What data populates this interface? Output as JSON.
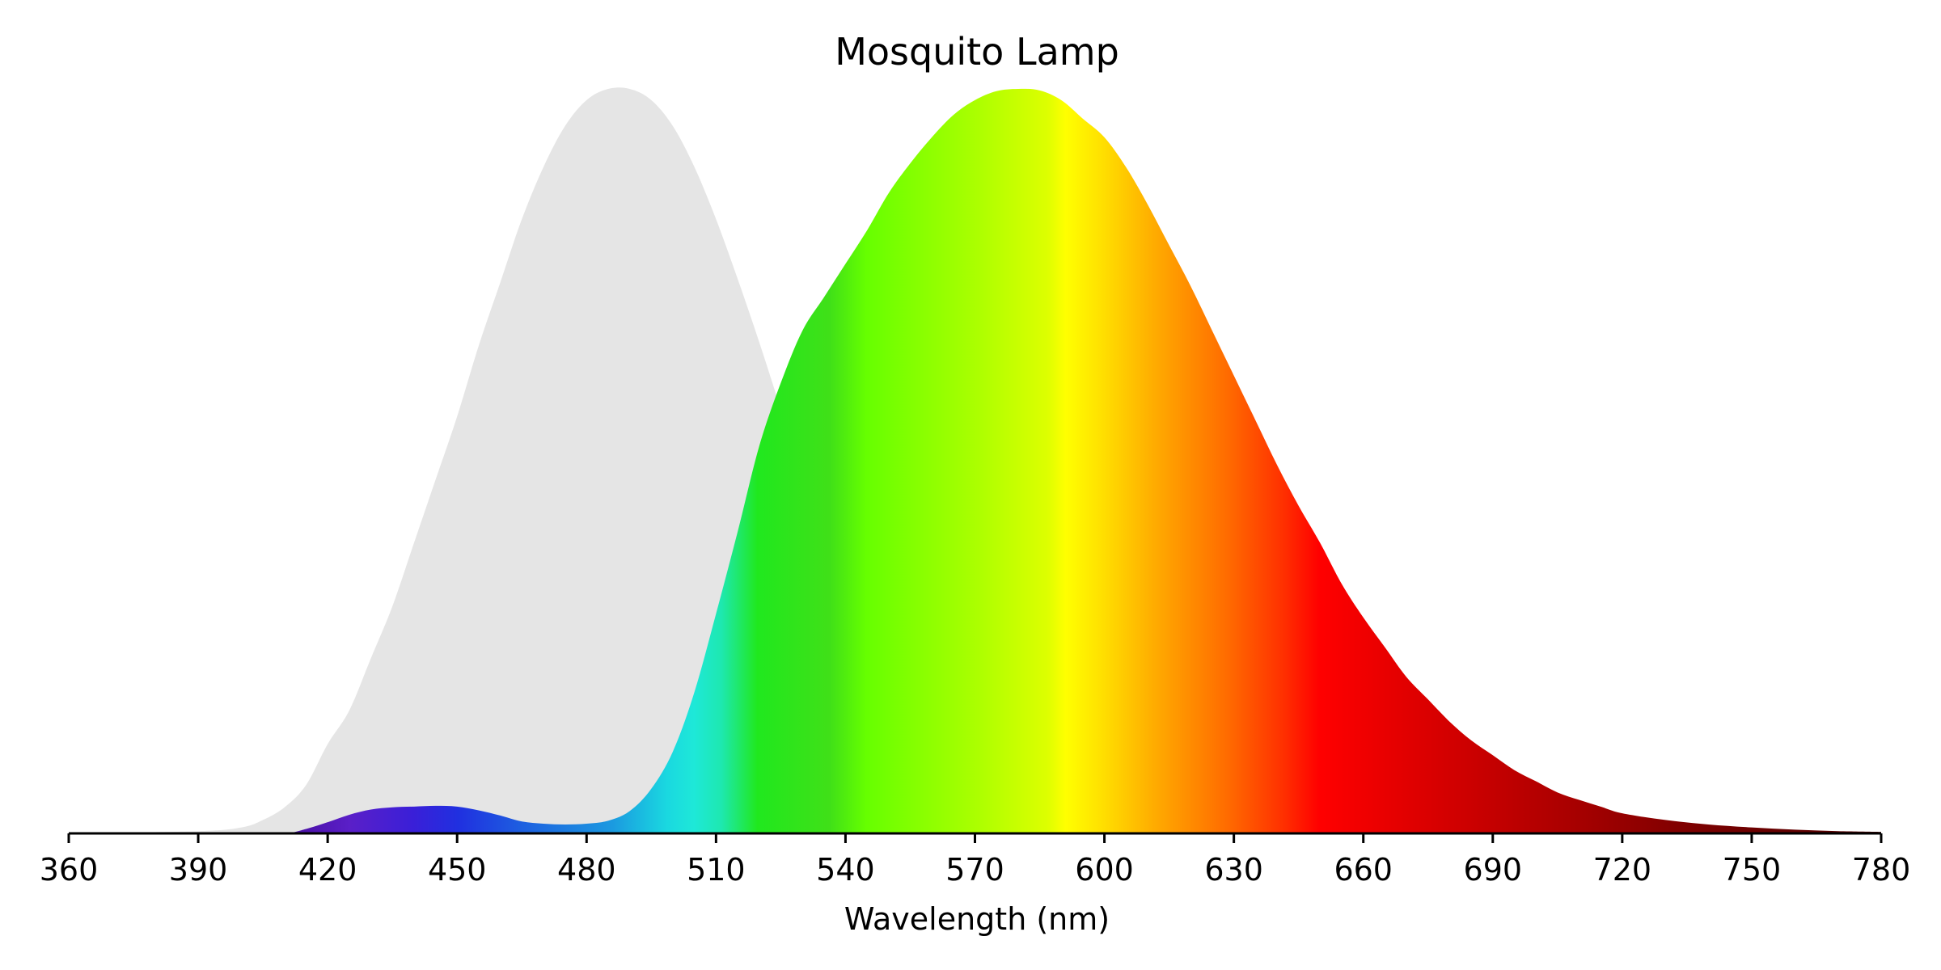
{
  "chart_data": {
    "type": "area",
    "title": "Mosquito Lamp",
    "xlabel": "Wavelength (nm)",
    "ylabel": "",
    "xlim": [
      360,
      780
    ],
    "ylim": [
      0,
      1.0
    ],
    "xticks": [
      360,
      390,
      420,
      450,
      480,
      510,
      540,
      570,
      600,
      630,
      660,
      690,
      720,
      750,
      780
    ],
    "grid": false,
    "legend": "none",
    "y_axis_visible": false,
    "reference_color": "#e5e5e5",
    "series": [
      {
        "fill": "gray",
        "x": [
          360,
          390,
          400,
          405,
          410,
          415,
          420,
          425,
          430,
          435,
          440,
          445,
          450,
          455,
          460,
          465,
          470,
          475,
          480,
          485,
          490,
          495,
          500,
          505,
          510,
          515,
          520,
          525,
          530,
          535,
          540,
          545,
          550,
          555,
          560,
          565,
          570,
          575,
          580,
          585,
          590,
          595,
          600,
          620,
          640
        ],
        "y": [
          0,
          0.003,
          0.008,
          0.018,
          0.035,
          0.065,
          0.12,
          0.165,
          0.235,
          0.305,
          0.39,
          0.475,
          0.56,
          0.655,
          0.74,
          0.825,
          0.895,
          0.95,
          0.985,
          1.0,
          1.0,
          0.985,
          0.95,
          0.895,
          0.825,
          0.745,
          0.66,
          0.57,
          0.48,
          0.395,
          0.315,
          0.245,
          0.18,
          0.13,
          0.09,
          0.06,
          0.038,
          0.024,
          0.014,
          0.008,
          0.004,
          0.002,
          0.001,
          0.0,
          0.0
        ]
      },
      {
        "fill": "spectrum",
        "x": [
          400,
          410,
          415,
          420,
          425,
          430,
          435,
          440,
          445,
          450,
          455,
          460,
          465,
          470,
          475,
          480,
          485,
          490,
          495,
          500,
          505,
          510,
          515,
          520,
          525,
          530,
          535,
          540,
          545,
          550,
          555,
          560,
          565,
          570,
          575,
          580,
          585,
          590,
          595,
          600,
          605,
          610,
          615,
          620,
          625,
          630,
          635,
          640,
          645,
          650,
          655,
          660,
          665,
          670,
          675,
          680,
          685,
          690,
          695,
          700,
          705,
          710,
          715,
          720,
          730,
          740,
          750,
          760,
          770,
          780
        ],
        "y": [
          0,
          0.0,
          0.006,
          0.015,
          0.025,
          0.032,
          0.035,
          0.036,
          0.037,
          0.036,
          0.031,
          0.024,
          0.016,
          0.013,
          0.012,
          0.013,
          0.017,
          0.03,
          0.06,
          0.11,
          0.19,
          0.295,
          0.405,
          0.52,
          0.605,
          0.675,
          0.72,
          0.765,
          0.81,
          0.86,
          0.9,
          0.935,
          0.965,
          0.985,
          0.997,
          1.0,
          0.998,
          0.985,
          0.96,
          0.935,
          0.895,
          0.845,
          0.79,
          0.735,
          0.675,
          0.615,
          0.555,
          0.495,
          0.44,
          0.39,
          0.335,
          0.29,
          0.25,
          0.21,
          0.18,
          0.15,
          0.125,
          0.105,
          0.085,
          0.07,
          0.055,
          0.045,
          0.036,
          0.027,
          0.018,
          0.012,
          0.008,
          0.005,
          0.003,
          0.002
        ]
      }
    ]
  }
}
